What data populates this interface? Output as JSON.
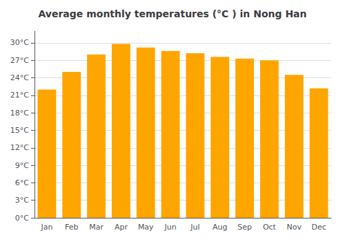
{
  "chart_data": {
    "type": "bar",
    "title": "Average monthly temperatures (°C ) in Nong Han",
    "categories": [
      "Jan",
      "Feb",
      "Mar",
      "Apr",
      "May",
      "Jun",
      "Jul",
      "Aug",
      "Sep",
      "Oct",
      "Nov",
      "Dec"
    ],
    "values": [
      22.0,
      25.0,
      28.0,
      29.8,
      29.2,
      28.6,
      28.2,
      27.6,
      27.3,
      27.0,
      24.5,
      22.2
    ],
    "color": "#FFA500",
    "ylim": [
      0,
      32
    ],
    "yticks": [
      {
        "value": 0,
        "label": "0°C"
      },
      {
        "value": 3,
        "label": "3°C"
      },
      {
        "value": 6,
        "label": "6°C"
      },
      {
        "value": 9,
        "label": "9°C"
      },
      {
        "value": 12,
        "label": "12°C"
      },
      {
        "value": 15,
        "label": "15°C"
      },
      {
        "value": 18,
        "label": "18°C"
      },
      {
        "value": 21,
        "label": "21°C"
      },
      {
        "value": 24,
        "label": "24°C"
      },
      {
        "value": 27,
        "label": "27°C"
      },
      {
        "value": 30,
        "label": "30°C"
      }
    ],
    "grid": true
  }
}
